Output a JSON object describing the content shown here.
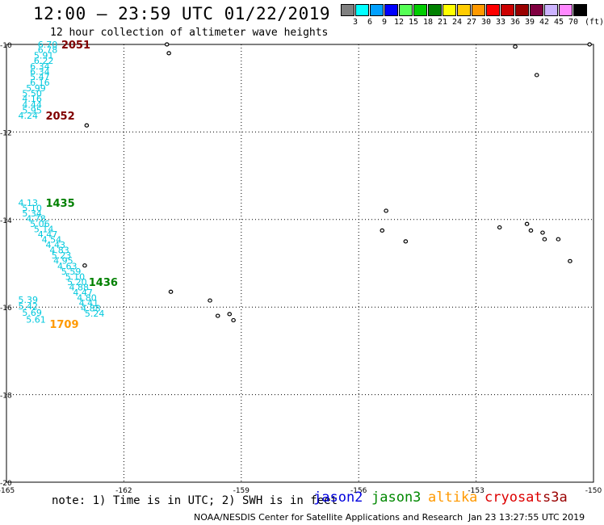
{
  "header": {
    "title": "12:00 – 23:59 UTC 01/22/2019",
    "subtitle": "12 hour collection of altimeter wave heights"
  },
  "legend": {
    "unit": "(ft)",
    "bins": [
      {
        "label": "3",
        "color": "#808080"
      },
      {
        "label": "6",
        "color": "#00ffff"
      },
      {
        "label": "9",
        "color": "#00a0ff"
      },
      {
        "label": "12",
        "color": "#0000ff"
      },
      {
        "label": "15",
        "color": "#55ff55"
      },
      {
        "label": "18",
        "color": "#00cc00"
      },
      {
        "label": "21",
        "color": "#008000"
      },
      {
        "label": "24",
        "color": "#ffff00"
      },
      {
        "label": "27",
        "color": "#ffcc00"
      },
      {
        "label": "30",
        "color": "#ff9900"
      },
      {
        "label": "33",
        "color": "#ff0000"
      },
      {
        "label": "36",
        "color": "#cc0000"
      },
      {
        "label": "39",
        "color": "#990000"
      },
      {
        "label": "42",
        "color": "#800040"
      },
      {
        "label": "45",
        "color": "#ccb3ff"
      },
      {
        "label": "70",
        "color": "#ff88ff"
      },
      {
        "label": "",
        "color": "#000000"
      }
    ]
  },
  "axes": {
    "lon_ticks": [
      "-165",
      "-162",
      "-159",
      "-156",
      "-153",
      "-150"
    ],
    "lat_ticks": [
      "-10",
      "-12",
      "-14",
      "-16",
      "-18",
      "-20"
    ]
  },
  "map": {
    "lon_range": [
      -165,
      -150
    ],
    "lat_range": [
      -20,
      -10
    ],
    "grid": "dotted",
    "tracks": [
      {
        "time": "2051",
        "color": "#800000",
        "label_lon": -163.6,
        "label_lat": -10.0,
        "points": [
          {
            "v": "6.70",
            "lon": -164.2,
            "lat": -10.0
          },
          {
            "v": "6.78",
            "lon": -164.2,
            "lat": -10.12
          },
          {
            "v": "5.91",
            "lon": -164.3,
            "lat": -10.25
          },
          {
            "v": "6.22",
            "lon": -164.3,
            "lat": -10.37
          },
          {
            "v": "6.34",
            "lon": -164.4,
            "lat": -10.5
          },
          {
            "v": "6.34",
            "lon": -164.4,
            "lat": -10.62
          },
          {
            "v": "5.47",
            "lon": -164.4,
            "lat": -10.74
          },
          {
            "v": "6.16",
            "lon": -164.4,
            "lat": -10.87
          },
          {
            "v": "5.99",
            "lon": -164.5,
            "lat": -11.0
          },
          {
            "v": "5.50",
            "lon": -164.6,
            "lat": -11.12
          },
          {
            "v": "4.16",
            "lon": -164.6,
            "lat": -11.24
          },
          {
            "v": "4.44",
            "lon": -164.6,
            "lat": -11.37
          },
          {
            "v": "5.95",
            "lon": -164.6,
            "lat": -11.5
          },
          {
            "v": "4.24",
            "lon": -164.7,
            "lat": -11.62
          }
        ]
      },
      {
        "time": "2052",
        "color": "#800000",
        "label_lon": -164.0,
        "label_lat": -11.62,
        "points": []
      },
      {
        "time": "1435",
        "color": "#008000",
        "label_lon": -164.0,
        "label_lat": -13.62,
        "points": [
          {
            "v": "4.13",
            "lon": -164.7,
            "lat": -13.62
          },
          {
            "v": "5.10",
            "lon": -164.6,
            "lat": -13.74
          },
          {
            "v": "5.34",
            "lon": -164.6,
            "lat": -13.86
          },
          {
            "v": "4.78",
            "lon": -164.5,
            "lat": -13.98
          },
          {
            "v": "5.06",
            "lon": -164.4,
            "lat": -14.1
          },
          {
            "v": "5.14",
            "lon": -164.3,
            "lat": -14.22
          },
          {
            "v": "4.47",
            "lon": -164.2,
            "lat": -14.34
          },
          {
            "v": "4.54",
            "lon": -164.1,
            "lat": -14.46
          },
          {
            "v": "4.43",
            "lon": -164.0,
            "lat": -14.58
          },
          {
            "v": "4.83",
            "lon": -163.9,
            "lat": -14.7
          },
          {
            "v": "5.23",
            "lon": -163.85,
            "lat": -14.82
          },
          {
            "v": "4.95",
            "lon": -163.8,
            "lat": -14.94
          },
          {
            "v": "4.63",
            "lon": -163.7,
            "lat": -15.06
          },
          {
            "v": "5.59",
            "lon": -163.6,
            "lat": -15.18
          },
          {
            "v": "5.10",
            "lon": -163.5,
            "lat": -15.3
          },
          {
            "v": "5.20",
            "lon": -163.45,
            "lat": -15.42
          },
          {
            "v": "4.88",
            "lon": -163.4,
            "lat": -15.54
          },
          {
            "v": "4.47",
            "lon": -163.3,
            "lat": -15.66
          },
          {
            "v": "4.80",
            "lon": -163.2,
            "lat": -15.78
          },
          {
            "v": "4.41",
            "lon": -163.15,
            "lat": -15.9
          },
          {
            "v": "4.88",
            "lon": -163.1,
            "lat": -16.02
          },
          {
            "v": "5.24",
            "lon": -163.0,
            "lat": -16.14
          }
        ]
      },
      {
        "time": "1436",
        "color": "#008000",
        "label_lon": -162.9,
        "label_lat": -15.42,
        "points": []
      },
      {
        "time": "1709",
        "color": "#ff9900",
        "label_lon": -163.9,
        "label_lat": -16.38,
        "points": [
          {
            "v": "5.39",
            "lon": -164.7,
            "lat": -15.83
          },
          {
            "v": "5.42",
            "lon": -164.7,
            "lat": -15.98
          },
          {
            "v": "5.69",
            "lon": -164.6,
            "lat": -16.13
          },
          {
            "v": "5.61",
            "lon": -164.5,
            "lat": -16.28
          }
        ]
      }
    ],
    "islands": [
      {
        "lon": -160.9,
        "lat": -10.0
      },
      {
        "lon": -160.85,
        "lat": -10.2
      },
      {
        "lon": -152.0,
        "lat": -10.05
      },
      {
        "lon": -151.45,
        "lat": -10.7
      },
      {
        "lon": -150.1,
        "lat": -10.0
      },
      {
        "lon": -162.95,
        "lat": -11.85
      },
      {
        "lon": -155.3,
        "lat": -13.8
      },
      {
        "lon": -155.4,
        "lat": -14.25
      },
      {
        "lon": -154.8,
        "lat": -14.5
      },
      {
        "lon": -152.4,
        "lat": -14.18
      },
      {
        "lon": -151.7,
        "lat": -14.1
      },
      {
        "lon": -151.6,
        "lat": -14.25
      },
      {
        "lon": -151.3,
        "lat": -14.3
      },
      {
        "lon": -151.25,
        "lat": -14.45
      },
      {
        "lon": -150.9,
        "lat": -14.45
      },
      {
        "lon": -150.6,
        "lat": -14.95
      },
      {
        "lon": -163.0,
        "lat": -15.05
      },
      {
        "lon": -160.8,
        "lat": -15.65
      },
      {
        "lon": -159.8,
        "lat": -15.85
      },
      {
        "lon": -159.6,
        "lat": -16.2
      },
      {
        "lon": -159.3,
        "lat": -16.16
      },
      {
        "lon": -159.2,
        "lat": -16.3
      }
    ]
  },
  "footer": {
    "note": "note: 1) Time is in UTC; 2) SWH is in feet",
    "satellites": [
      {
        "name": "jason2",
        "color": "#0000dd"
      },
      {
        "name": "jason3",
        "color": "#008800"
      },
      {
        "name": "altika",
        "color": "#ff9900"
      },
      {
        "name": "cryosat",
        "color": "#dd0000"
      },
      {
        "name": "s3a",
        "color": "#990000"
      }
    ],
    "credit": "NOAA/NESDIS Center for Satellite Applications and Research",
    "timestamp": "Jan 23 13:27:55 UTC 2019"
  }
}
